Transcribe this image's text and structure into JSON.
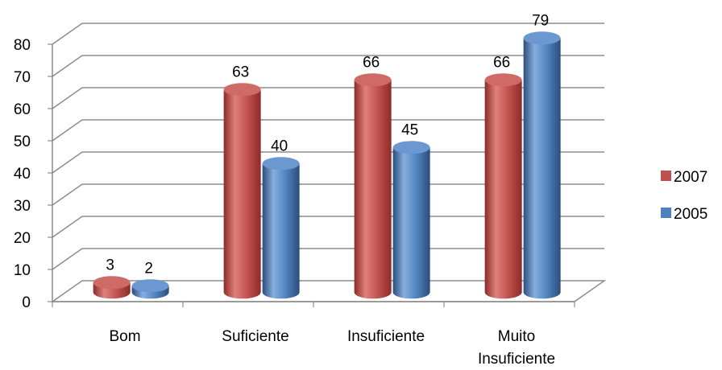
{
  "chart_data": {
    "type": "bar",
    "categories": [
      "Bom",
      "Suficiente",
      "Insuficiente",
      "Muito Insuficiente"
    ],
    "series": [
      {
        "name": "2007",
        "values": [
          3,
          63,
          66,
          66
        ],
        "color": "#c0504d"
      },
      {
        "name": "2005",
        "values": [
          2,
          40,
          45,
          79
        ],
        "color": "#4f81bd"
      }
    ],
    "ylim": [
      0,
      80
    ],
    "yticks": [
      "0",
      "10",
      "20",
      "30",
      "40",
      "50",
      "60",
      "70",
      "80"
    ],
    "grid": true,
    "legend": "right",
    "style": "3d-cylinder"
  }
}
